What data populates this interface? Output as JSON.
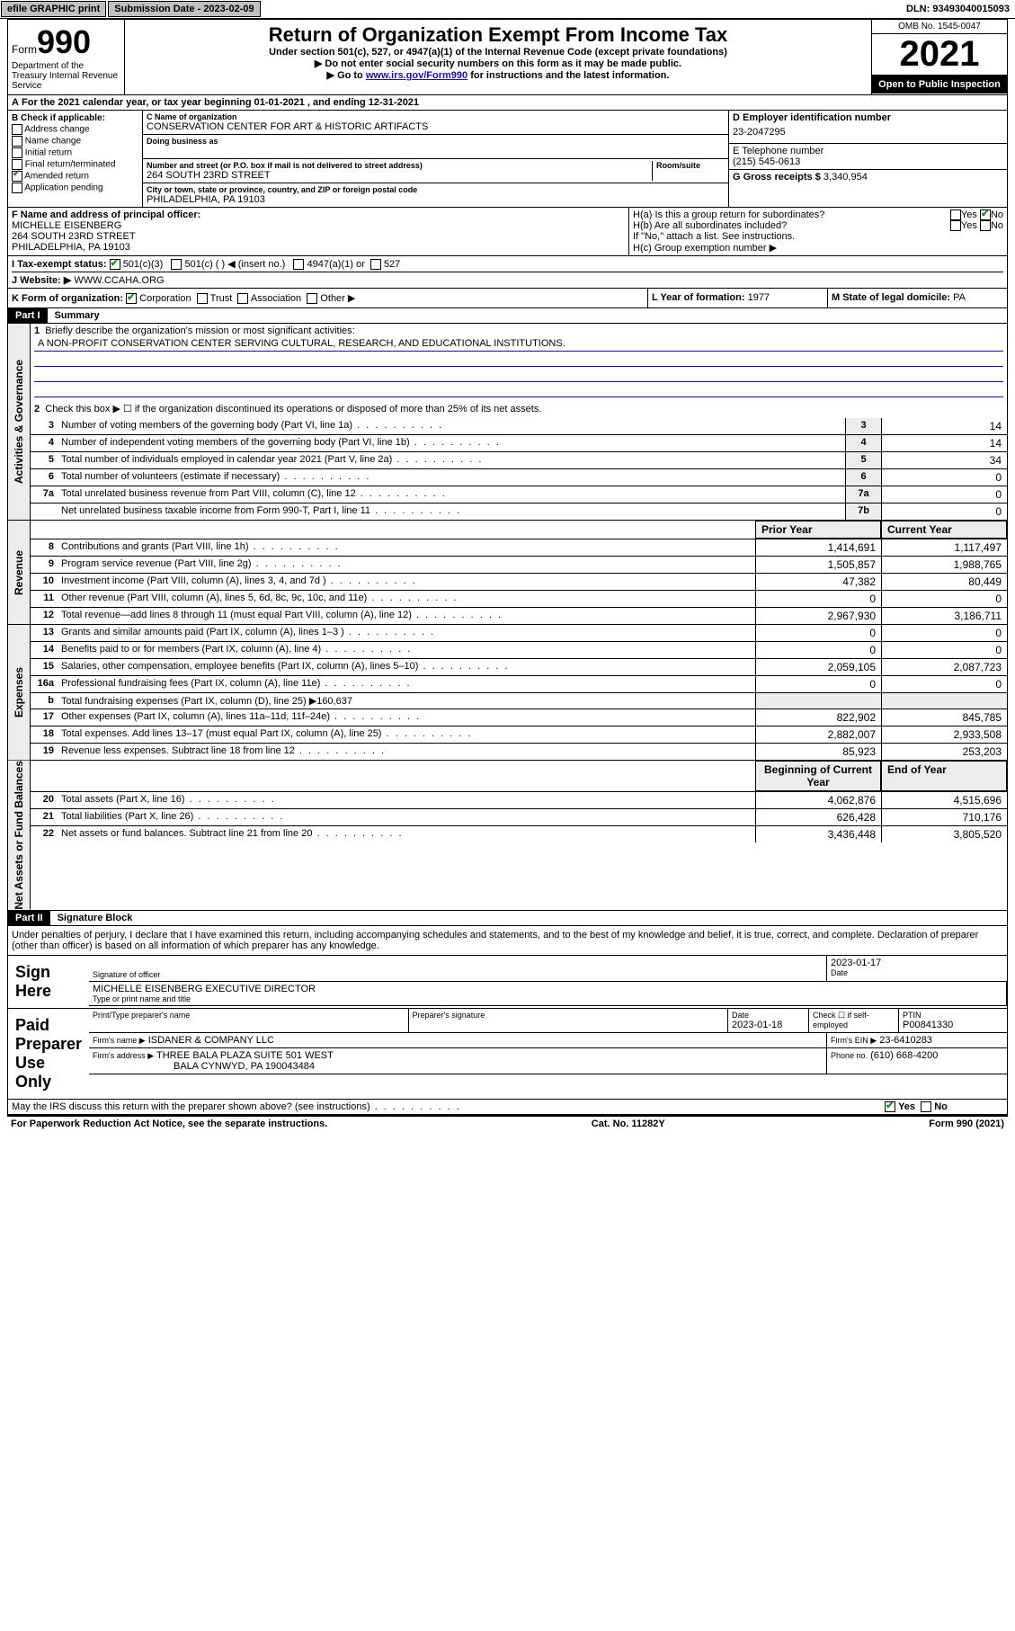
{
  "topbar": {
    "efile": "efile GRAPHIC print",
    "submission_label": "Submission Date - 2023-02-09",
    "dln": "DLN: 93493040015093"
  },
  "header": {
    "form_prefix": "Form",
    "form_number": "990",
    "dept": "Department of the Treasury Internal Revenue Service",
    "title": "Return of Organization Exempt From Income Tax",
    "subtitle": "Under section 501(c), 527, or 4947(a)(1) of the Internal Revenue Code (except private foundations)",
    "note1": "▶ Do not enter social security numbers on this form as it may be made public.",
    "note2_prefix": "▶ Go to ",
    "note2_link": "www.irs.gov/Form990",
    "note2_suffix": " for instructions and the latest information.",
    "omb": "OMB No. 1545-0047",
    "year": "2021",
    "open": "Open to Public Inspection"
  },
  "period": {
    "text": "For the 2021 calendar year, or tax year beginning 01-01-2021    , and ending 12-31-2021"
  },
  "sectionB": {
    "label": "B Check if applicable:",
    "addr_change": "Address change",
    "name_change": "Name change",
    "initial": "Initial return",
    "final": "Final return/terminated",
    "amended": "Amended return",
    "app_pending": "Application pending"
  },
  "sectionC": {
    "name_label": "C Name of organization",
    "name": "CONSERVATION CENTER FOR ART & HISTORIC ARTIFACTS",
    "dba_label": "Doing business as",
    "street_label": "Number and street (or P.O. box if mail is not delivered to street address)",
    "room_label": "Room/suite",
    "street": "264 SOUTH 23RD STREET",
    "city_label": "City or town, state or province, country, and ZIP or foreign postal code",
    "city": "PHILADELPHIA, PA  19103"
  },
  "sectionD": {
    "label": "D Employer identification number",
    "value": "23-2047295"
  },
  "sectionE": {
    "label": "E Telephone number",
    "value": "(215) 545-0613"
  },
  "sectionG": {
    "label": "G Gross receipts $",
    "value": "3,340,954"
  },
  "sectionF": {
    "label": "F Name and address of principal officer:",
    "name": "MICHELLE EISENBERG",
    "street": "264 SOUTH 23RD STREET",
    "city": "PHILADELPHIA, PA  19103"
  },
  "sectionH": {
    "a": "H(a)  Is this a group return for subordinates?",
    "a_yes": "Yes",
    "a_no": "No",
    "b": "H(b)  Are all subordinates included?",
    "b_note": "If \"No,\" attach a list. See instructions.",
    "c": "H(c)  Group exemption number ▶"
  },
  "sectionI": {
    "label": "I   Tax-exempt status:",
    "c3": "501(c)(3)",
    "c": "501(c) (  ) ◀ (insert no.)",
    "a1": "4947(a)(1) or",
    "s527": "527"
  },
  "sectionJ": {
    "label": "J   Website: ▶",
    "value": "WWW.CCAHA.ORG"
  },
  "sectionK": {
    "label": "K Form of organization:",
    "corp": "Corporation",
    "trust": "Trust",
    "assoc": "Association",
    "other": "Other ▶"
  },
  "sectionL": {
    "label": "L Year of formation:",
    "value": "1977"
  },
  "sectionM": {
    "label": "M State of legal domicile:",
    "value": "PA"
  },
  "part1": {
    "bar": "Part I",
    "title": "Summary",
    "l1_label": "Briefly describe the organization's mission or most significant activities:",
    "l1_text": "A NON-PROFIT CONSERVATION CENTER SERVING CULTURAL, RESEARCH, AND EDUCATIONAL INSTITUTIONS.",
    "l2": "Check this box ▶ ☐  if the organization discontinued its operations or disposed of more than 25% of its net assets.",
    "side_gov": "Activities & Governance",
    "side_rev": "Revenue",
    "side_exp": "Expenses",
    "side_net": "Net Assets or Fund Balances",
    "rows_gov": [
      {
        "n": "3",
        "d": "Number of voting members of the governing body (Part VI, line 1a)",
        "box": "3",
        "v": "14"
      },
      {
        "n": "4",
        "d": "Number of independent voting members of the governing body (Part VI, line 1b)",
        "box": "4",
        "v": "14"
      },
      {
        "n": "5",
        "d": "Total number of individuals employed in calendar year 2021 (Part V, line 2a)",
        "box": "5",
        "v": "34"
      },
      {
        "n": "6",
        "d": "Total number of volunteers (estimate if necessary)",
        "box": "6",
        "v": "0"
      },
      {
        "n": "7a",
        "d": "Total unrelated business revenue from Part VIII, column (C), line 12",
        "box": "7a",
        "v": "0"
      },
      {
        "n": "",
        "d": "Net unrelated business taxable income from Form 990-T, Part I, line 11",
        "box": "7b",
        "v": "0"
      }
    ],
    "hdr_prior": "Prior Year",
    "hdr_current": "Current Year",
    "rows_rev": [
      {
        "n": "8",
        "d": "Contributions and grants (Part VIII, line 1h)",
        "p": "1,414,691",
        "c": "1,117,497"
      },
      {
        "n": "9",
        "d": "Program service revenue (Part VIII, line 2g)",
        "p": "1,505,857",
        "c": "1,988,765"
      },
      {
        "n": "10",
        "d": "Investment income (Part VIII, column (A), lines 3, 4, and 7d )",
        "p": "47,382",
        "c": "80,449"
      },
      {
        "n": "11",
        "d": "Other revenue (Part VIII, column (A), lines 5, 6d, 8c, 9c, 10c, and 11e)",
        "p": "0",
        "c": "0"
      },
      {
        "n": "12",
        "d": "Total revenue—add lines 8 through 11 (must equal Part VIII, column (A), line 12)",
        "p": "2,967,930",
        "c": "3,186,711"
      }
    ],
    "rows_exp": [
      {
        "n": "13",
        "d": "Grants and similar amounts paid (Part IX, column (A), lines 1–3 )",
        "p": "0",
        "c": "0"
      },
      {
        "n": "14",
        "d": "Benefits paid to or for members (Part IX, column (A), line 4)",
        "p": "0",
        "c": "0"
      },
      {
        "n": "15",
        "d": "Salaries, other compensation, employee benefits (Part IX, column (A), lines 5–10)",
        "p": "2,059,105",
        "c": "2,087,723"
      },
      {
        "n": "16a",
        "d": "Professional fundraising fees (Part IX, column (A), line 11e)",
        "p": "0",
        "c": "0"
      },
      {
        "n": "b",
        "d": "Total fundraising expenses (Part IX, column (D), line 25) ▶160,637",
        "p": "",
        "c": "",
        "grey": true
      },
      {
        "n": "17",
        "d": "Other expenses (Part IX, column (A), lines 11a–11d, 11f–24e)",
        "p": "822,902",
        "c": "845,785"
      },
      {
        "n": "18",
        "d": "Total expenses. Add lines 13–17 (must equal Part IX, column (A), line 25)",
        "p": "2,882,007",
        "c": "2,933,508"
      },
      {
        "n": "19",
        "d": "Revenue less expenses. Subtract line 18 from line 12",
        "p": "85,923",
        "c": "253,203"
      }
    ],
    "hdr_beg": "Beginning of Current Year",
    "hdr_end": "End of Year",
    "rows_net": [
      {
        "n": "20",
        "d": "Total assets (Part X, line 16)",
        "p": "4,062,876",
        "c": "4,515,696"
      },
      {
        "n": "21",
        "d": "Total liabilities (Part X, line 26)",
        "p": "626,428",
        "c": "710,176"
      },
      {
        "n": "22",
        "d": "Net assets or fund balances. Subtract line 21 from line 20",
        "p": "3,436,448",
        "c": "3,805,520"
      }
    ]
  },
  "part2": {
    "bar": "Part II",
    "title": "Signature Block",
    "decl": "Under penalties of perjury, I declare that I have examined this return, including accompanying schedules and statements, and to the best of my knowledge and belief, it is true, correct, and complete. Declaration of preparer (other than officer) is based on all information of which preparer has any knowledge.",
    "sign_here": "Sign Here",
    "sig_officer": "Signature of officer",
    "sig_date_label": "Date",
    "sig_date": "2023-01-17",
    "name_title_label": "Type or print name and title",
    "name_title": "MICHELLE EISENBERG  EXECUTIVE DIRECTOR",
    "paid": "Paid Preparer Use Only",
    "prep_name_label": "Print/Type preparer's name",
    "prep_sig_label": "Preparer's signature",
    "prep_date_label": "Date",
    "prep_date": "2023-01-18",
    "check_if": "Check ☐ if self-employed",
    "ptin_label": "PTIN",
    "ptin": "P00841330",
    "firm_name_label": "Firm's name    ▶",
    "firm_name": "ISDANER & COMPANY LLC",
    "firm_ein_label": "Firm's EIN ▶",
    "firm_ein": "23-6410283",
    "firm_addr_label": "Firm's address ▶",
    "firm_addr1": "THREE BALA PLAZA SUITE 501 WEST",
    "firm_addr2": "BALA CYNWYD, PA  190043484",
    "phone_label": "Phone no.",
    "phone": "(610) 668-4200",
    "discuss": "May the IRS discuss this return with the preparer shown above? (see instructions)",
    "yes": "Yes",
    "no": "No"
  },
  "footer": {
    "left": "For Paperwork Reduction Act Notice, see the separate instructions.",
    "mid": "Cat. No. 11282Y",
    "right": "Form 990 (2021)"
  }
}
